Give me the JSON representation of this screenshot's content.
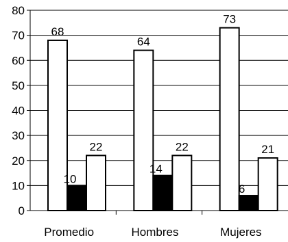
{
  "chart_data": {
    "type": "bar",
    "categories": [
      "Promedio",
      "Hombres",
      "Mujeres"
    ],
    "series": [
      {
        "values": [
          68,
          64,
          73
        ],
        "color": "#ffffff"
      },
      {
        "values": [
          10,
          14,
          6
        ],
        "color": "#000000"
      },
      {
        "values": [
          22,
          22,
          21
        ],
        "color": "#ffffff"
      }
    ],
    "ylim": [
      0,
      80
    ],
    "yticks": [
      "0",
      "10",
      "20",
      "30",
      "40",
      "50",
      "60",
      "70",
      "80"
    ],
    "grid": true,
    "legend": "none"
  }
}
